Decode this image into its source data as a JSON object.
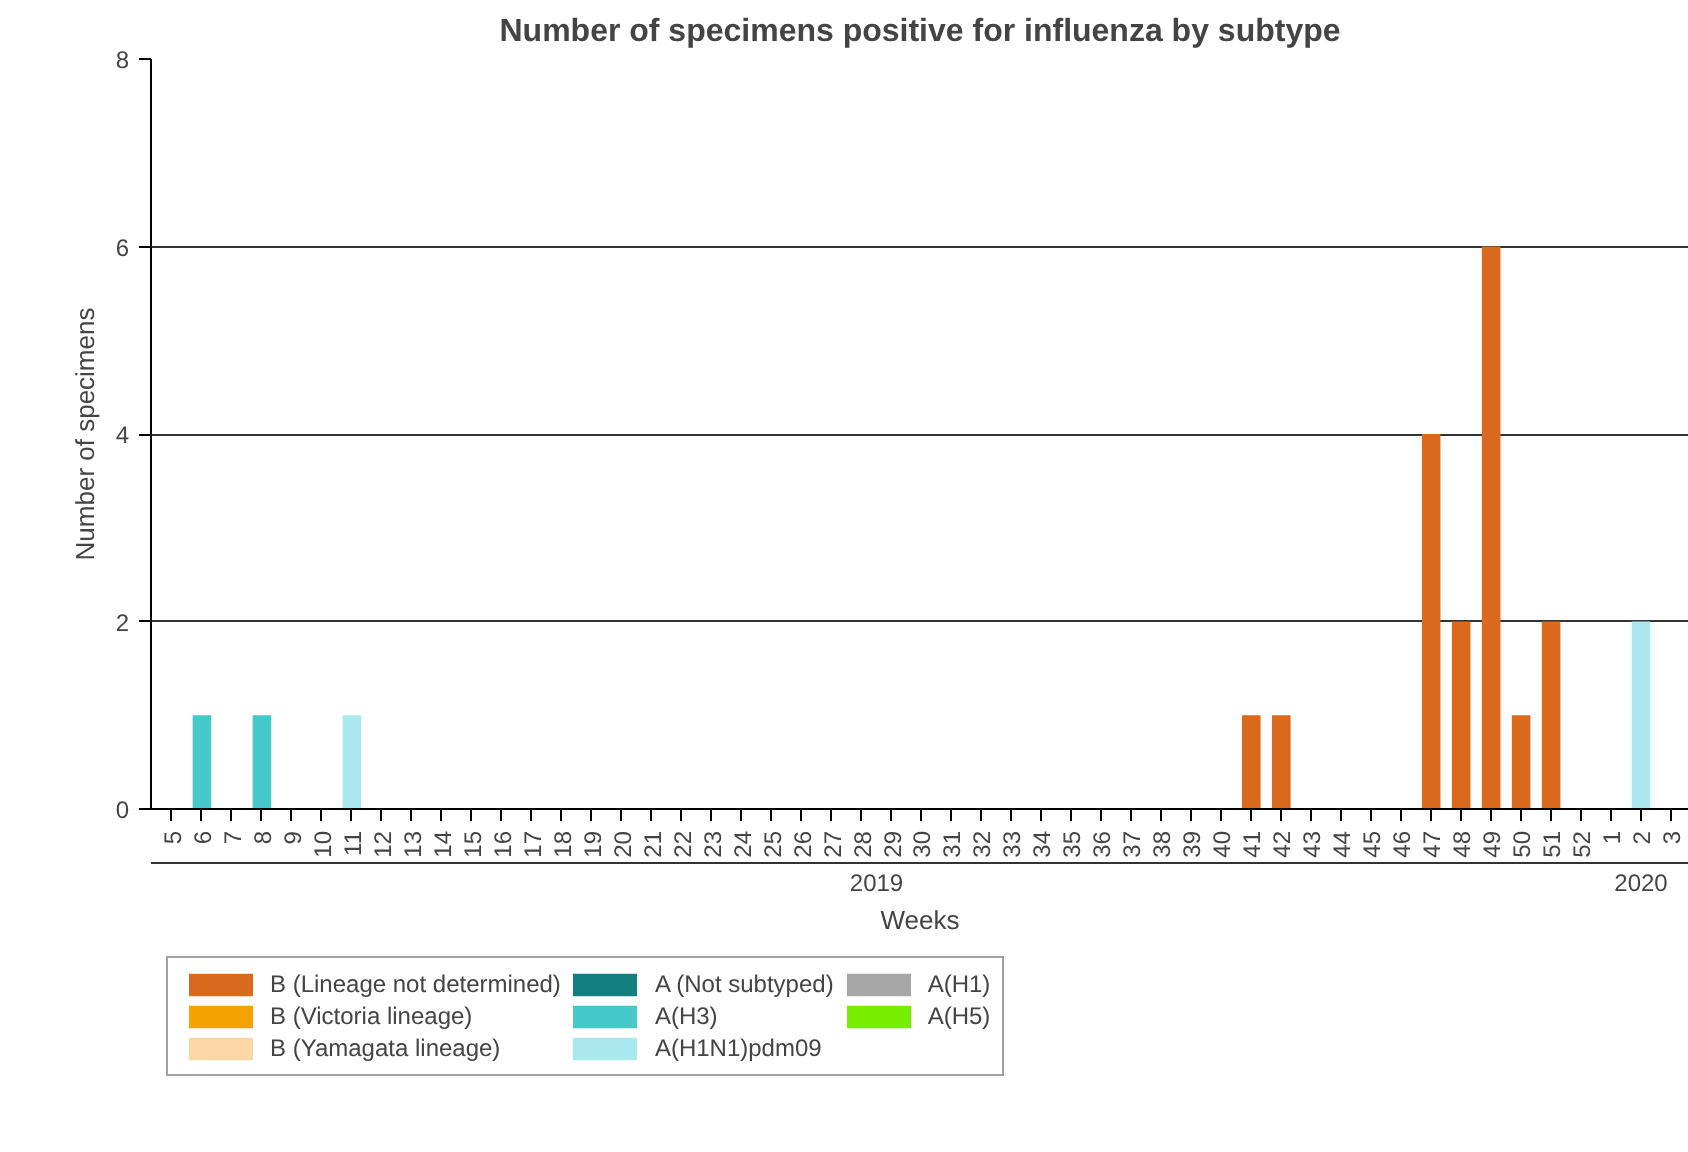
{
  "chart_data": {
    "type": "bar",
    "stacked": true,
    "title": "Number of specimens positive for influenza by subtype",
    "xlabel": "Weeks",
    "ylabel": "Number of specimens",
    "categories": [
      "5",
      "6",
      "7",
      "8",
      "9",
      "10",
      "11",
      "12",
      "13",
      "14",
      "15",
      "16",
      "17",
      "18",
      "19",
      "20",
      "21",
      "22",
      "23",
      "24",
      "25",
      "26",
      "27",
      "28",
      "29",
      "30",
      "31",
      "32",
      "33",
      "34",
      "35",
      "36",
      "37",
      "38",
      "39",
      "40",
      "41",
      "42",
      "43",
      "44",
      "45",
      "46",
      "47",
      "48",
      "49",
      "50",
      "51",
      "52",
      "1",
      "2",
      "3"
    ],
    "annotations": [
      "2019",
      "2020"
    ],
    "ylim": [
      0,
      8
    ],
    "yticks": [
      0,
      2,
      4,
      6,
      8
    ],
    "grid": "y",
    "legend": "bottom left",
    "series": [
      {
        "name": "B (Lineage not determined)",
        "color": "#d9691c",
        "values": [
          0,
          0,
          0,
          0,
          0,
          0,
          0,
          0,
          0,
          0,
          0,
          0,
          0,
          0,
          0,
          0,
          0,
          0,
          0,
          0,
          0,
          0,
          0,
          0,
          0,
          0,
          0,
          0,
          0,
          0,
          0,
          0,
          0,
          0,
          0,
          0,
          1,
          1,
          0,
          0,
          0,
          0,
          4,
          2,
          6,
          1,
          2,
          0,
          0,
          0,
          0
        ]
      },
      {
        "name": "B (Victoria lineage)",
        "color": "#f5a300",
        "values": [
          0,
          0,
          0,
          0,
          0,
          0,
          0,
          0,
          0,
          0,
          0,
          0,
          0,
          0,
          0,
          0,
          0,
          0,
          0,
          0,
          0,
          0,
          0,
          0,
          0,
          0,
          0,
          0,
          0,
          0,
          0,
          0,
          0,
          0,
          0,
          0,
          0,
          0,
          0,
          0,
          0,
          0,
          0,
          0,
          0,
          0,
          0,
          0,
          0,
          0,
          0
        ]
      },
      {
        "name": "B (Yamagata lineage)",
        "color": "#fcd7a6",
        "values": [
          0,
          0,
          0,
          0,
          0,
          0,
          0,
          0,
          0,
          0,
          0,
          0,
          0,
          0,
          0,
          0,
          0,
          0,
          0,
          0,
          0,
          0,
          0,
          0,
          0,
          0,
          0,
          0,
          0,
          0,
          0,
          0,
          0,
          0,
          0,
          0,
          0,
          0,
          0,
          0,
          0,
          0,
          0,
          0,
          0,
          0,
          0,
          0,
          0,
          0,
          0
        ]
      },
      {
        "name": "A (Not subtyped)",
        "color": "#137f7f",
        "values": [
          0,
          0,
          0,
          0,
          0,
          0,
          0,
          0,
          0,
          0,
          0,
          0,
          0,
          0,
          0,
          0,
          0,
          0,
          0,
          0,
          0,
          0,
          0,
          0,
          0,
          0,
          0,
          0,
          0,
          0,
          0,
          0,
          0,
          0,
          0,
          0,
          0,
          0,
          0,
          0,
          0,
          0,
          0,
          0,
          0,
          0,
          0,
          0,
          0,
          0,
          0
        ]
      },
      {
        "name": "A(H3)",
        "color": "#48c9c9",
        "values": [
          0,
          1,
          0,
          1,
          0,
          0,
          0,
          0,
          0,
          0,
          0,
          0,
          0,
          0,
          0,
          0,
          0,
          0,
          0,
          0,
          0,
          0,
          0,
          0,
          0,
          0,
          0,
          0,
          0,
          0,
          0,
          0,
          0,
          0,
          0,
          0,
          0,
          0,
          0,
          0,
          0,
          0,
          0,
          0,
          0,
          0,
          0,
          0,
          0,
          0,
          0
        ]
      },
      {
        "name": "A(H1N1)pdm09",
        "color": "#a9e8ec",
        "values": [
          0,
          0,
          0,
          0,
          0,
          0,
          1,
          0,
          0,
          0,
          0,
          0,
          0,
          0,
          0,
          0,
          0,
          0,
          0,
          0,
          0,
          0,
          0,
          0,
          0,
          0,
          0,
          0,
          0,
          0,
          0,
          0,
          0,
          0,
          0,
          0,
          0,
          0,
          0,
          0,
          0,
          0,
          0,
          0,
          0,
          0,
          0,
          0,
          0,
          2,
          0
        ]
      },
      {
        "name": "A(H1)",
        "color": "#a6a6a6",
        "values": [
          0,
          0,
          0,
          0,
          0,
          0,
          0,
          0,
          0,
          0,
          0,
          0,
          0,
          0,
          0,
          0,
          0,
          0,
          0,
          0,
          0,
          0,
          0,
          0,
          0,
          0,
          0,
          0,
          0,
          0,
          0,
          0,
          0,
          0,
          0,
          0,
          0,
          0,
          0,
          0,
          0,
          0,
          0,
          0,
          0,
          0,
          0,
          0,
          0,
          0,
          0
        ]
      },
      {
        "name": "A(H5)",
        "color": "#76ee00",
        "values": [
          0,
          0,
          0,
          0,
          0,
          0,
          0,
          0,
          0,
          0,
          0,
          0,
          0,
          0,
          0,
          0,
          0,
          0,
          0,
          0,
          0,
          0,
          0,
          0,
          0,
          0,
          0,
          0,
          0,
          0,
          0,
          0,
          0,
          0,
          0,
          0,
          0,
          0,
          0,
          0,
          0,
          0,
          0,
          0,
          0,
          0,
          0,
          0,
          0,
          0,
          0
        ]
      }
    ]
  }
}
